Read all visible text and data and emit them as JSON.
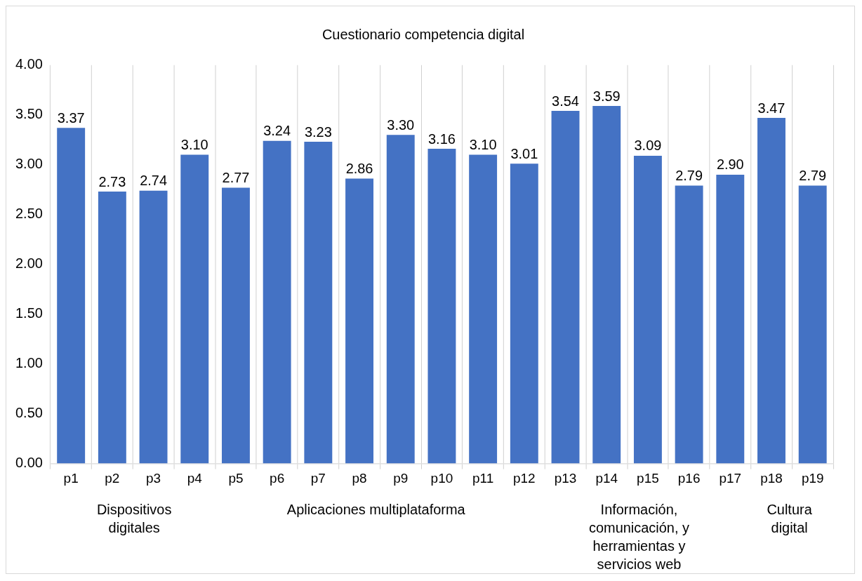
{
  "chart_data": {
    "type": "bar",
    "title": "Cuestionario competencia digital",
    "categories": [
      "p1",
      "p2",
      "p3",
      "p4",
      "p5",
      "p6",
      "p7",
      "p8",
      "p9",
      "p10",
      "p11",
      "p12",
      "p13",
      "p14",
      "p15",
      "p16",
      "p17",
      "p18",
      "p19"
    ],
    "values": [
      3.37,
      2.73,
      2.74,
      3.1,
      2.77,
      3.24,
      3.23,
      2.86,
      3.3,
      3.16,
      3.1,
      3.01,
      3.54,
      3.59,
      3.09,
      2.79,
      2.9,
      3.47,
      2.79
    ],
    "value_labels": [
      "3.37",
      "2.73",
      "2.74",
      "3.10",
      "2.77",
      "3.24",
      "3.23",
      "2.86",
      "3.30",
      "3.16",
      "3.10",
      "3.01",
      "3.54",
      "3.59",
      "3.09",
      "2.79",
      "2.90",
      "3.47",
      "2.79"
    ],
    "color": "#4472c4",
    "ylim": [
      0,
      4
    ],
    "yticks": [
      {
        "value": 0,
        "label": "0.00"
      },
      {
        "value": 0.5,
        "label": "0.50"
      },
      {
        "value": 1,
        "label": "1.00"
      },
      {
        "value": 1.5,
        "label": "1.50"
      },
      {
        "value": 2,
        "label": "2.00"
      },
      {
        "value": 2.5,
        "label": "2.50"
      },
      {
        "value": 3,
        "label": "3.00"
      },
      {
        "value": 3.5,
        "label": "3.50"
      },
      {
        "value": 4,
        "label": "4.00"
      }
    ],
    "grid": "x",
    "legend": false,
    "annotations": [
      "Dispositivos digitales",
      "Aplicaciones multiplataforma",
      "Información, comunicación, y herramientas y servicios web",
      "Cultura digital"
    ]
  }
}
